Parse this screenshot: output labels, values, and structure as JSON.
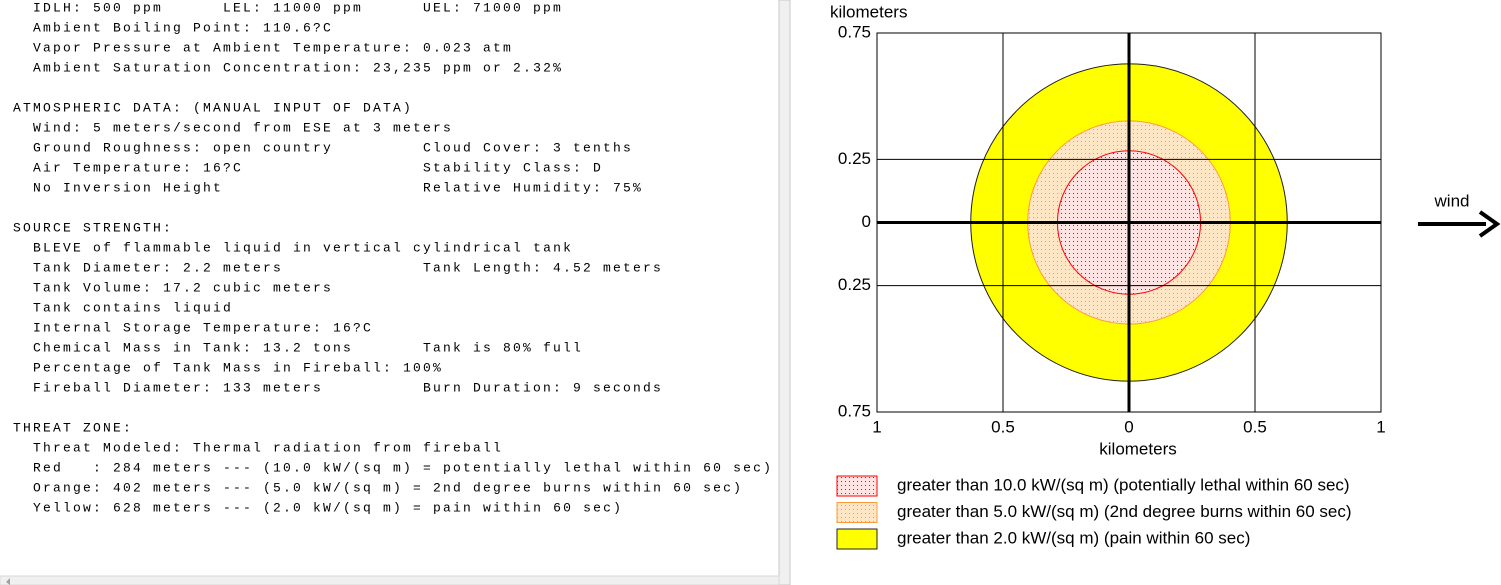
{
  "text_panel": {
    "sections": [
      {
        "rows": [
          [
            "IDLH: 500 ppm",
            "LEL: 11000 ppm",
            "UEL: 71000 ppm"
          ],
          [
            "Ambient Boiling Point: 110.6?C"
          ],
          [
            "Vapor Pressure at Ambient Temperature: 0.023 atm"
          ],
          [
            "Ambient Saturation Concentration: 23,235 ppm or 2.32%"
          ]
        ]
      },
      {
        "header": "ATMOSPHERIC DATA: (MANUAL INPUT OF DATA)",
        "rows": [
          [
            "Wind: 5 meters/second from ESE at 3 meters"
          ],
          [
            "Ground Roughness: open country",
            "Cloud Cover: 3 tenths"
          ],
          [
            "Air Temperature: 16?C",
            "Stability Class: D"
          ],
          [
            "No Inversion Height",
            "Relative Humidity: 75%"
          ]
        ]
      },
      {
        "header": "SOURCE STRENGTH:",
        "rows": [
          [
            "BLEVE of flammable liquid in vertical cylindrical tank"
          ],
          [
            "Tank Diameter: 2.2 meters",
            "Tank Length: 4.52 meters"
          ],
          [
            "Tank Volume: 17.2 cubic meters"
          ],
          [
            "Tank contains liquid"
          ],
          [
            "Internal Storage Temperature: 16?C"
          ],
          [
            "Chemical Mass in Tank: 13.2 tons",
            "Tank is 80% full"
          ],
          [
            "Percentage of Tank Mass in Fireball: 100%"
          ],
          [
            "Fireball Diameter: 133 meters",
            "Burn Duration: 9 seconds"
          ]
        ]
      },
      {
        "header": "THREAT ZONE:",
        "rows": [
          [
            "Threat Modeled: Thermal radiation from fireball"
          ],
          [
            "Red   : 284 meters --- (10.0 kW/(sq m) = potentially lethal within 60 sec)"
          ],
          [
            "Orange: 402 meters --- (5.0 kW/(sq m) = 2nd degree burns within 60 sec)"
          ],
          [
            "Yellow: 628 meters --- (2.0 kW/(sq m) = pain within 60 sec)"
          ]
        ]
      }
    ]
  },
  "chart_data": {
    "type": "threat-zone",
    "xlabel": "kilometers",
    "ylabel": "kilometers",
    "xlim": [
      -1,
      1
    ],
    "ylim": [
      -0.75,
      0.75
    ],
    "xticks": [
      {
        "value": -1,
        "label": "1"
      },
      {
        "value": -0.5,
        "label": "0.5"
      },
      0,
      0.5,
      1
    ],
    "yticks": [
      {
        "value": -0.75,
        "label": "0.75"
      },
      {
        "value": -0.25,
        "label": "0.25"
      },
      0,
      0.25,
      0.75
    ],
    "grid": true,
    "zones": [
      {
        "name": "greater than 10.0 kW/(sq m) (potentially lethal within 60 sec)",
        "radius": 0.284,
        "color": "#ff0000",
        "fill": "#ffe4e4",
        "fill_style": "dotted"
      },
      {
        "name": "greater than 5.0 kW/(sq m) (2nd degree burns within 60 sec)",
        "radius": 0.402,
        "color": "#ff9a3c",
        "fill": "#ffe6c4",
        "fill_style": "dotted"
      },
      {
        "name": "greater than 2.0 kW/(sq m) (pain within 60 sec)",
        "radius": 0.628,
        "color": "#202020",
        "fill": "#ffff00",
        "fill_style": "solid"
      }
    ],
    "wind_label": "wind"
  }
}
